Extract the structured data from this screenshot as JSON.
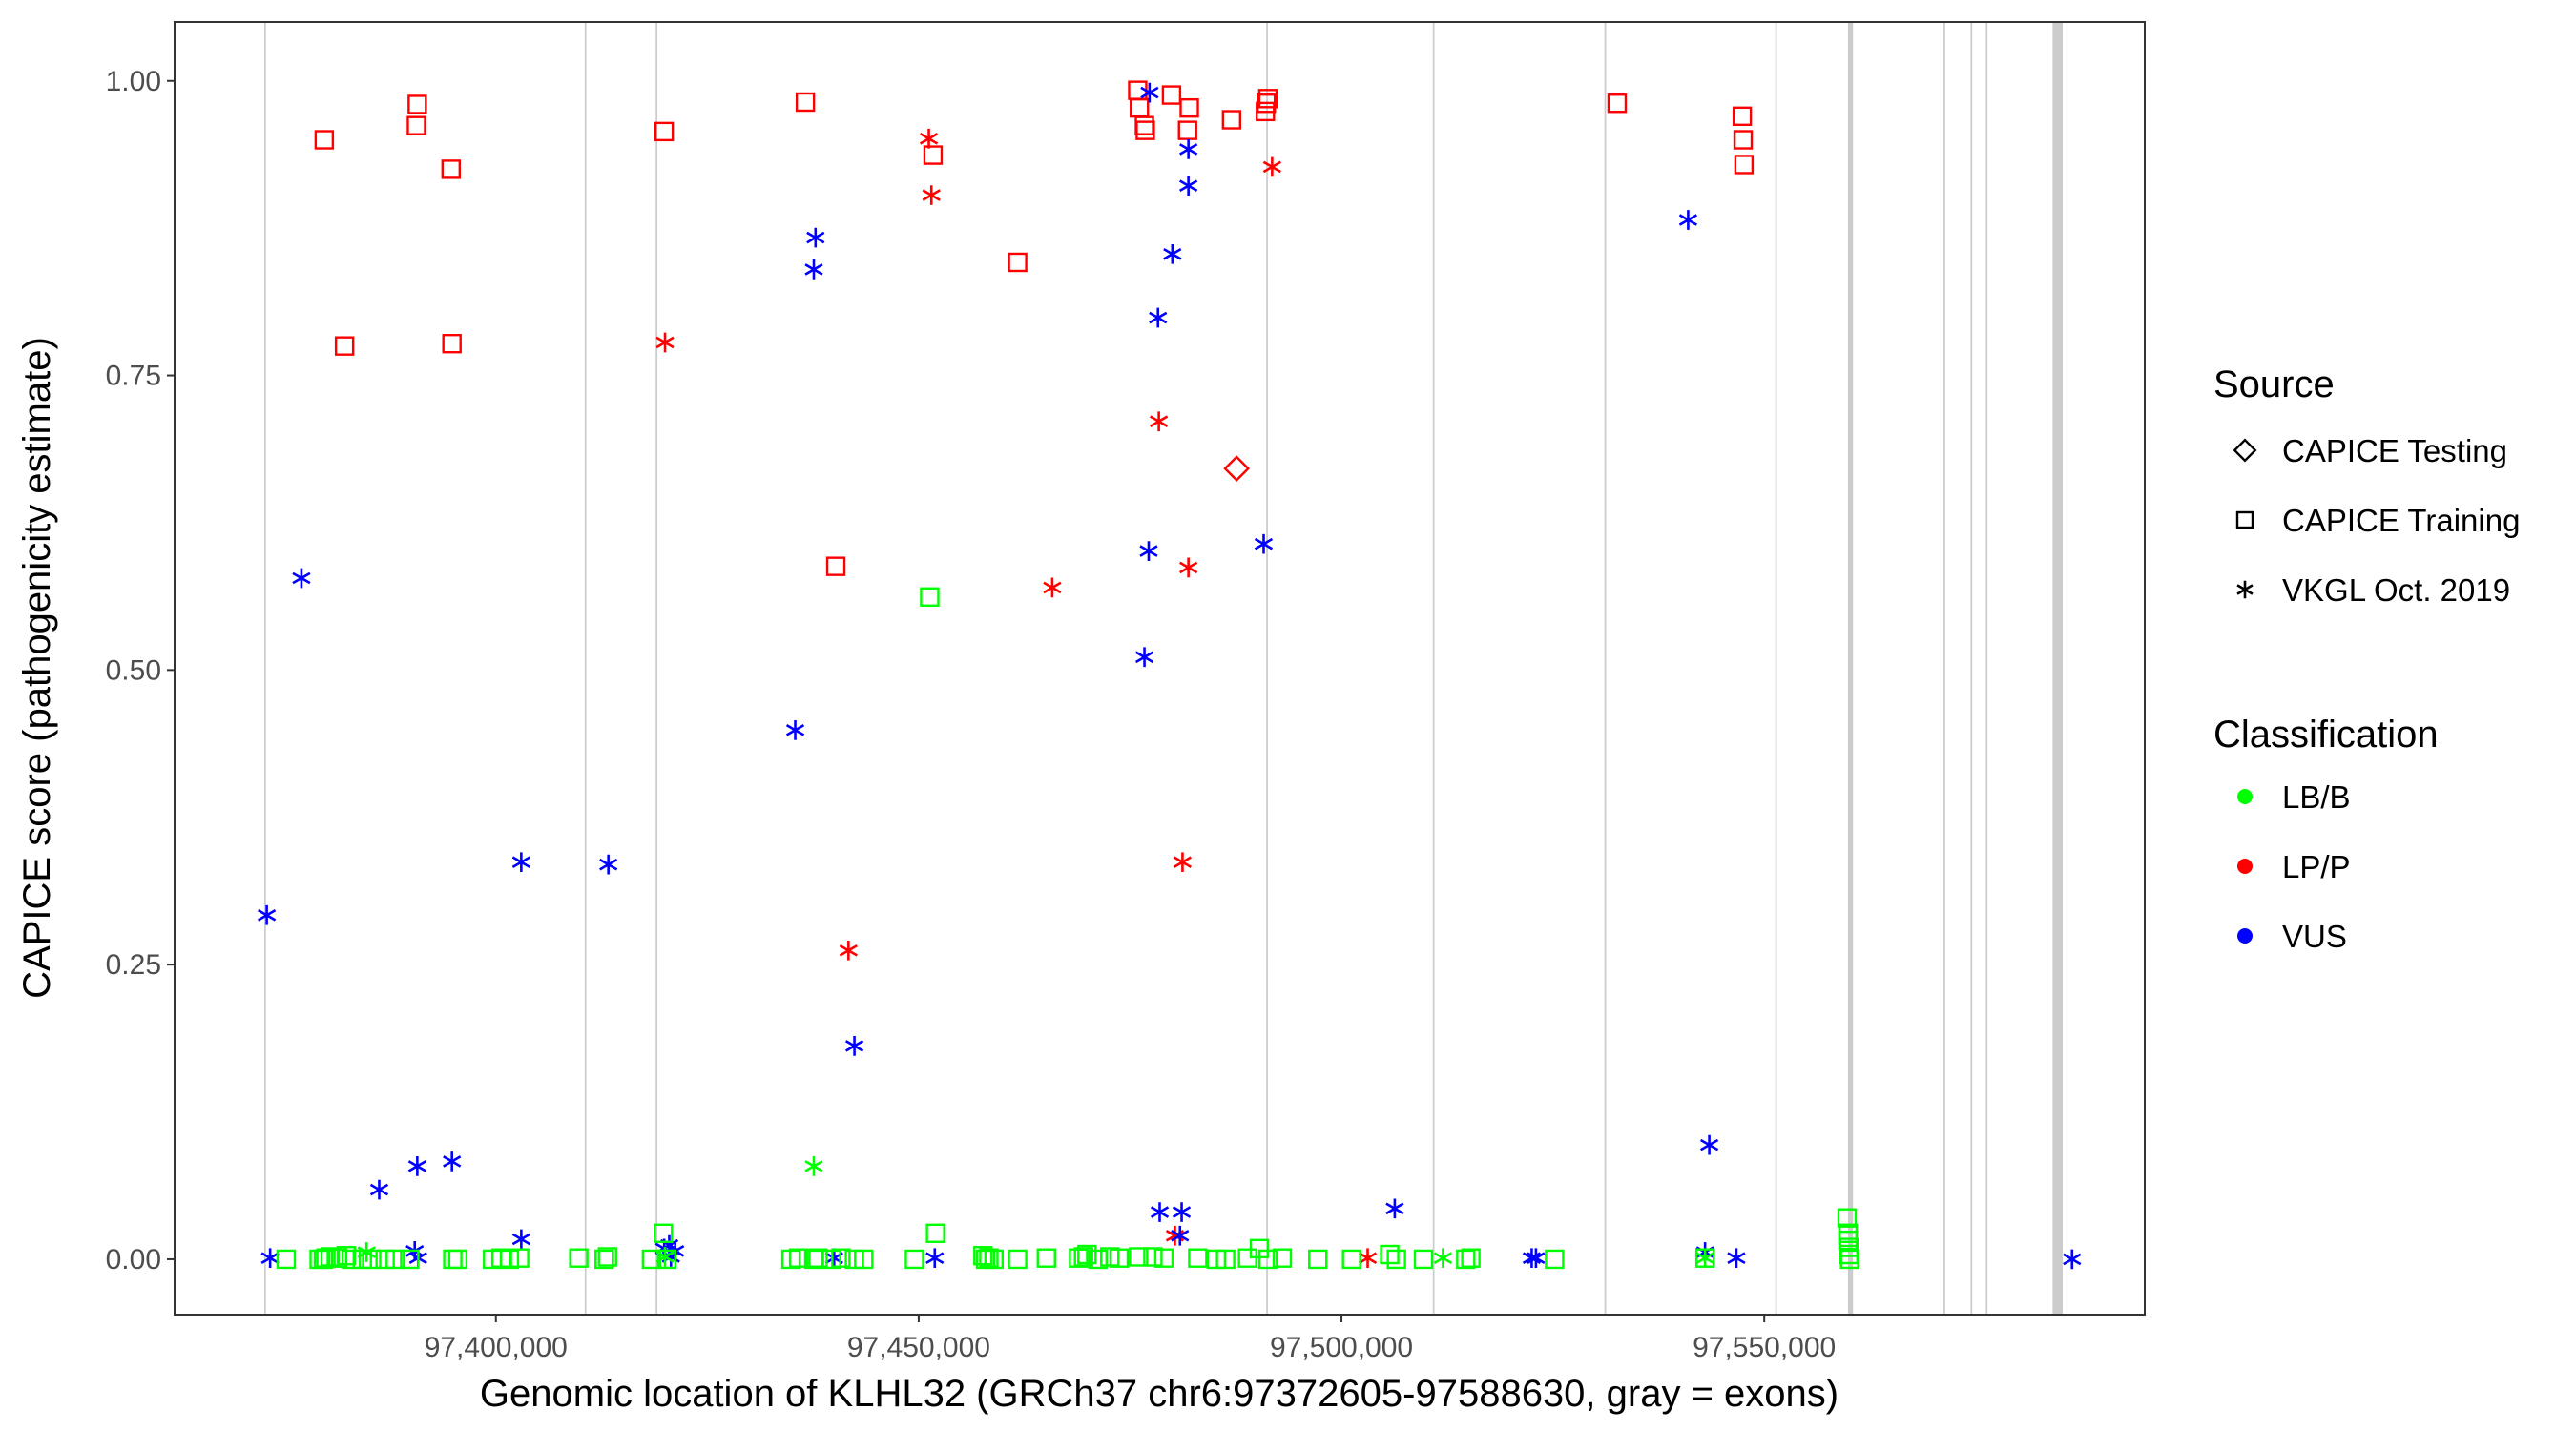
{
  "chart_data": {
    "type": "scatter",
    "title": "",
    "xlabel": "Genomic location of KLHL32 (GRCh37 chr6:97372605-97588630, gray = exons)",
    "ylabel": "CAPICE score (pathogenicity estimate)",
    "xlim": [
      97362000,
      97595000
    ],
    "ylim": [
      -0.047,
      1.05
    ],
    "x_ticks": [
      97400000,
      97450000,
      97500000,
      97550000
    ],
    "x_tick_labels": [
      "97,400,000",
      "97,450,000",
      "97,500,000",
      "97,550,000"
    ],
    "y_ticks": [
      0,
      0.25,
      0.5,
      0.75,
      1.0
    ],
    "y_tick_labels": [
      "0.00",
      "0.25",
      "0.50",
      "0.75",
      "1.00"
    ],
    "grid": false,
    "exons": [
      [
        97372600,
        97372800
      ],
      [
        97410500,
        97410700
      ],
      [
        97418900,
        97419100
      ],
      [
        97491100,
        97491300
      ],
      [
        97510800,
        97511000
      ],
      [
        97531100,
        97531300
      ],
      [
        97551300,
        97551500
      ],
      [
        97559900,
        97560500
      ],
      [
        97571200,
        97571400
      ],
      [
        97574400,
        97574600
      ],
      [
        97576200,
        97576400
      ],
      [
        97584100,
        97585300
      ]
    ],
    "legend": {
      "position": "right",
      "shape_title": "Source",
      "shapes": [
        {
          "key": "testing",
          "label": "CAPICE Testing",
          "shape": "diamond"
        },
        {
          "key": "training",
          "label": "CAPICE Training",
          "shape": "square"
        },
        {
          "key": "vkgl",
          "label": "VKGL Oct. 2019",
          "shape": "asterisk"
        }
      ],
      "color_title": "Classification",
      "colors": [
        {
          "key": "LB/B",
          "label": "LB/B",
          "color": "#00ff00"
        },
        {
          "key": "LP/P",
          "label": "LP/P",
          "color": "#ff0000"
        },
        {
          "key": "VUS",
          "label": "VUS",
          "color": "#0000ff"
        }
      ]
    },
    "series": [
      {
        "source": "training",
        "class": "LP/P",
        "points": [
          [
            97379700,
            0.95
          ],
          [
            97382100,
            0.775
          ],
          [
            97390700,
            0.98
          ],
          [
            97390600,
            0.962
          ],
          [
            97394700,
            0.925
          ],
          [
            97394800,
            0.777
          ],
          [
            97419900,
            0.957
          ],
          [
            97436600,
            0.982
          ],
          [
            97440200,
            0.588
          ],
          [
            97451700,
            0.937
          ],
          [
            97461700,
            0.846
          ],
          [
            97475900,
            0.992
          ],
          [
            97476100,
            0.977
          ],
          [
            97476700,
            0.962
          ],
          [
            97476800,
            0.958
          ],
          [
            97479900,
            0.988
          ],
          [
            97481800,
            0.958
          ],
          [
            97482000,
            0.977
          ],
          [
            97487000,
            0.967
          ],
          [
            97491000,
            0.974
          ],
          [
            97491100,
            0.981
          ],
          [
            97491300,
            0.985
          ],
          [
            97532600,
            0.981
          ],
          [
            97547400,
            0.97
          ],
          [
            97547500,
            0.95
          ],
          [
            97547600,
            0.929
          ]
        ]
      },
      {
        "source": "testing",
        "class": "LP/P",
        "points": [
          [
            97487600,
            0.671
          ]
        ]
      },
      {
        "source": "vkgl",
        "class": "LP/P",
        "points": [
          [
            97420000,
            0.778
          ],
          [
            97441700,
            0.262
          ],
          [
            97451200,
            0.951
          ],
          [
            97451500,
            0.903
          ],
          [
            97465800,
            0.57
          ],
          [
            97478400,
            0.711
          ],
          [
            97481200,
            0.337
          ],
          [
            97481900,
            0.587
          ],
          [
            97491800,
            0.927
          ],
          [
            97480300,
            0.02
          ],
          [
            97503100,
            0.001
          ]
        ]
      },
      {
        "source": "vkgl",
        "class": "VUS",
        "points": [
          [
            97372900,
            0.292
          ],
          [
            97373300,
            0.001
          ],
          [
            97377000,
            0.578
          ],
          [
            97386200,
            0.059
          ],
          [
            97390700,
            0.079
          ],
          [
            97394800,
            0.083
          ],
          [
            97403000,
            0.337
          ],
          [
            97413300,
            0.335
          ],
          [
            97403000,
            0.017
          ],
          [
            97390400,
            0.007
          ],
          [
            97390800,
            0.001
          ],
          [
            97419900,
            0.009
          ],
          [
            97420500,
            0.012
          ],
          [
            97421200,
            0.007
          ],
          [
            97420700,
            0.002
          ],
          [
            97435400,
            0.449
          ],
          [
            97437800,
            0.867
          ],
          [
            97437600,
            0.84
          ],
          [
            97442400,
            0.181
          ],
          [
            97440000,
            0.001
          ],
          [
            97451900,
            0.001
          ],
          [
            97477300,
            0.99
          ],
          [
            97477200,
            0.601
          ],
          [
            97476700,
            0.511
          ],
          [
            97478300,
            0.799
          ],
          [
            97480000,
            0.853
          ],
          [
            97481900,
            0.942
          ],
          [
            97481900,
            0.911
          ],
          [
            97490800,
            0.607
          ],
          [
            97478500,
            0.04
          ],
          [
            97481100,
            0.04
          ],
          [
            97480900,
            0.02
          ],
          [
            97506300,
            0.043
          ],
          [
            97522500,
            0.001
          ],
          [
            97523000,
            0.001
          ],
          [
            97541000,
            0.882
          ],
          [
            97543500,
            0.097
          ],
          [
            97543000,
            0.006
          ],
          [
            97546700,
            0.001
          ],
          [
            97586400,
            0.0
          ]
        ]
      },
      {
        "source": "vkgl",
        "class": "LB/B",
        "points": [
          [
            97384700,
            0.006
          ],
          [
            97420000,
            0.002
          ],
          [
            97437600,
            0.079
          ],
          [
            97512000,
            0.001
          ],
          [
            97543000,
            0.001
          ]
        ]
      },
      {
        "source": "training",
        "class": "LB/B",
        "points": [
          [
            97375200,
            0.0
          ],
          [
            97379100,
            0.0
          ],
          [
            97379600,
            0.0
          ],
          [
            97379900,
            0.001
          ],
          [
            97380400,
            0.002
          ],
          [
            97381300,
            0.001
          ],
          [
            97382300,
            0.003
          ],
          [
            97382900,
            0.0
          ],
          [
            97384200,
            0.0
          ],
          [
            97385300,
            0.0
          ],
          [
            97386900,
            0.0
          ],
          [
            97388100,
            0.0
          ],
          [
            97389800,
            0.0
          ],
          [
            97394900,
            0.0
          ],
          [
            97395500,
            0.0
          ],
          [
            97399600,
            0.0
          ],
          [
            97400600,
            0.001
          ],
          [
            97401600,
            0.0
          ],
          [
            97402800,
            0.001
          ],
          [
            97409800,
            0.001
          ],
          [
            97412800,
            0.0
          ],
          [
            97413200,
            0.002
          ],
          [
            97418400,
            0.0
          ],
          [
            97419800,
            0.022
          ],
          [
            97420200,
            0.0
          ],
          [
            97434900,
            0.0
          ],
          [
            97435800,
            0.001
          ],
          [
            97437600,
            0.0
          ],
          [
            97438100,
            0.001
          ],
          [
            97439700,
            0.0
          ],
          [
            97440800,
            0.001
          ],
          [
            97442400,
            0.0
          ],
          [
            97443500,
            0.0
          ],
          [
            97449500,
            0.0
          ],
          [
            97452000,
            0.022
          ],
          [
            97451300,
            0.562
          ],
          [
            97457600,
            0.003
          ],
          [
            97457900,
            0.0
          ],
          [
            97458300,
            0.001
          ],
          [
            97458900,
            0.0
          ],
          [
            97461700,
            0.0
          ],
          [
            97465100,
            0.001
          ],
          [
            97468900,
            0.001
          ],
          [
            97469500,
            0.002
          ],
          [
            97469900,
            0.004
          ],
          [
            97471200,
            0.0
          ],
          [
            97472600,
            0.002
          ],
          [
            97473700,
            0.001
          ],
          [
            97476000,
            0.002
          ],
          [
            97477700,
            0.002
          ],
          [
            97479000,
            0.001
          ],
          [
            97483000,
            0.001
          ],
          [
            97485200,
            0.0
          ],
          [
            97486300,
            0.0
          ],
          [
            97488900,
            0.001
          ],
          [
            97490300,
            0.009
          ],
          [
            97491300,
            0.0
          ],
          [
            97493000,
            0.001
          ],
          [
            97497200,
            0.0
          ],
          [
            97501200,
            0.0
          ],
          [
            97505700,
            0.004
          ],
          [
            97506500,
            0.0
          ],
          [
            97509700,
            0.0
          ],
          [
            97514700,
            0.0
          ],
          [
            97515300,
            0.001
          ],
          [
            97525200,
            0.0
          ],
          [
            97543000,
            0.001
          ],
          [
            97559800,
            0.035
          ],
          [
            97559900,
            0.022
          ],
          [
            97559900,
            0.016
          ],
          [
            97560000,
            0.01
          ],
          [
            97560000,
            0.004
          ],
          [
            97560100,
            0.0
          ]
        ]
      }
    ]
  }
}
